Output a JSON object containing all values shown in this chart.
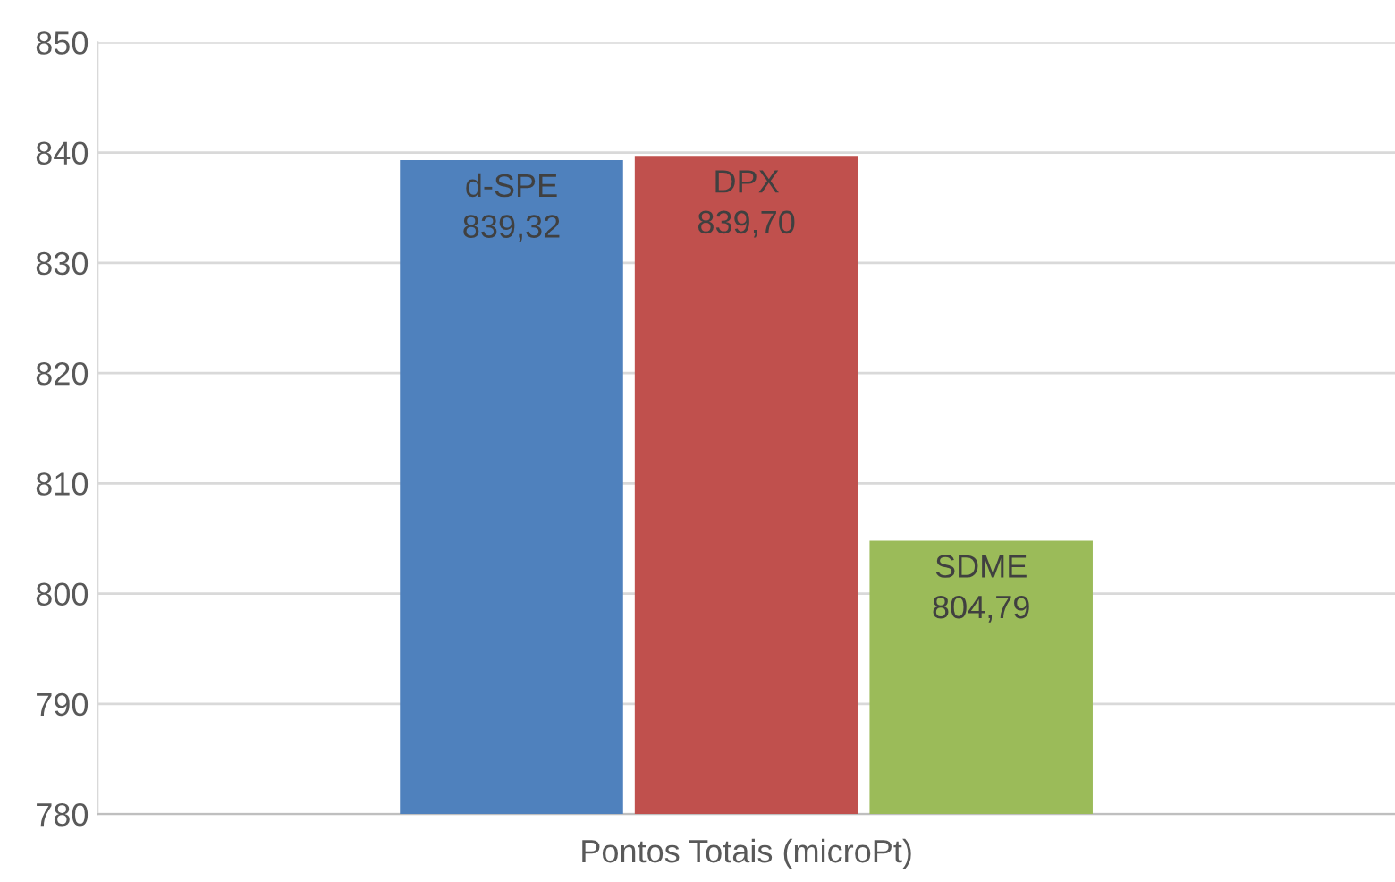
{
  "chart_data": {
    "type": "bar",
    "categories": [
      "Pontos Totais (microPt)"
    ],
    "series": [
      {
        "name": "d-SPE",
        "color": "#4f81bd",
        "values": [
          839.32
        ],
        "value_labels": [
          "839,32"
        ]
      },
      {
        "name": "DPX",
        "color": "#c0504d",
        "values": [
          839.7
        ],
        "value_labels": [
          "839,70"
        ]
      },
      {
        "name": "SDME",
        "color": "#9bbb59",
        "values": [
          804.79
        ],
        "value_labels": [
          "804,79"
        ]
      }
    ],
    "ylim": [
      780,
      850
    ],
    "yticks": [
      780,
      790,
      800,
      810,
      820,
      830,
      840,
      850
    ],
    "grid": "y",
    "legend": false
  }
}
